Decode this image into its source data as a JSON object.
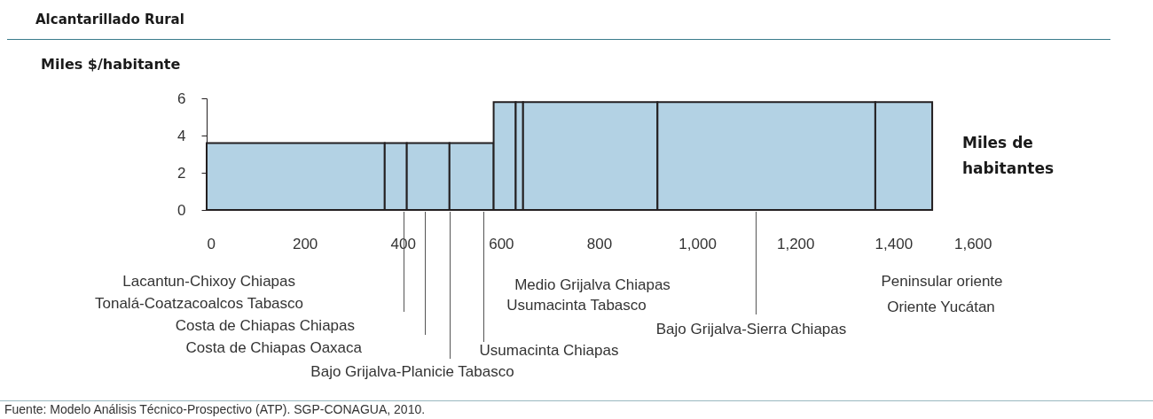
{
  "chart_data": {
    "type": "histogram",
    "title": "Alcantarillado Rural",
    "ylabel": "Miles $/habitante",
    "xlabel": "Miles de habitantes",
    "bins": [
      0,
      363,
      408,
      495,
      585,
      630,
      645,
      919,
      1363,
      1479
    ],
    "values": [
      3.6,
      3.6,
      3.6,
      3.6,
      5.8,
      5.8,
      5.8,
      5.8,
      5.8
    ],
    "color": "#b3d2e4",
    "xlim": [
      0,
      1600
    ],
    "xticks": [
      0,
      200,
      400,
      600,
      800,
      {
        "value": 1000,
        "label": "1,000"
      },
      {
        "value": 1200,
        "label": "1,200"
      },
      {
        "value": 1400,
        "label": "1,400"
      },
      {
        "value": 1600,
        "label": "1,600"
      }
    ],
    "ylim": [
      0,
      6
    ],
    "yticks": [
      0,
      2,
      4,
      6
    ],
    "annotations": [
      "Lacantun-Chixoy Chiapas",
      "Tonalá-Coatzacoalcos Tabasco",
      "Costa de Chiapas Chiapas",
      "Costa de Chiapas Oaxaca",
      "Bajo Grijalva-Planicie Tabasco",
      "Usumacinta Chiapas",
      "Medio Grijalva Chiapas",
      "Usumacinta Tabasco",
      "Bajo Grijalva-Sierra Chiapas",
      "Peninsular oriente",
      "Oriente Yucátan",
      "Fuente: Modelo Análisis Técnico-Prospectivo (ATP). SGP-CONAGUA, 2010."
    ]
  }
}
